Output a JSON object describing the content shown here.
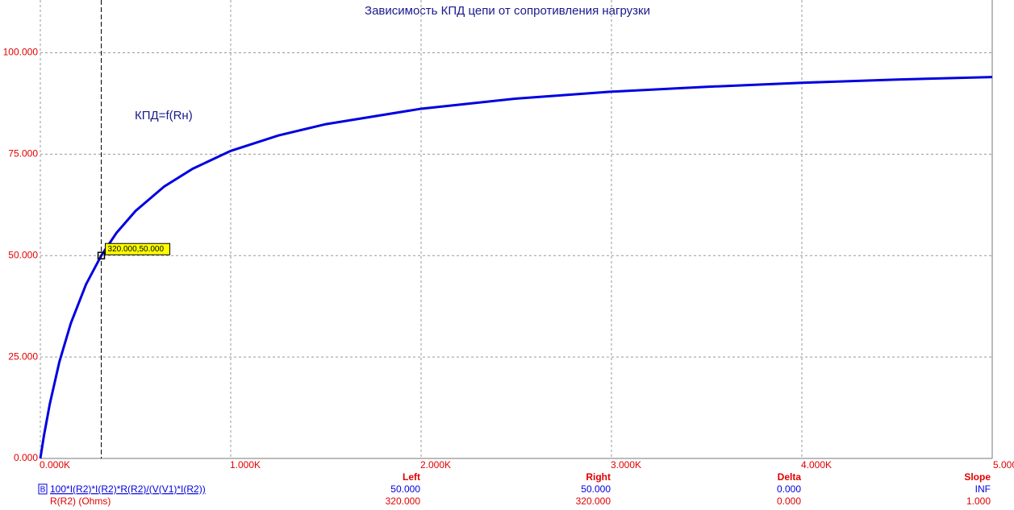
{
  "chart_data": {
    "type": "line",
    "title": "Зависимость КПД цепи от сопротивления нагрузки",
    "annotation": "КПД=f(Rн)",
    "x": [
      0,
      20,
      50,
      100,
      160,
      240,
      320,
      400,
      500,
      650,
      800,
      1000,
      1250,
      1500,
      2000,
      2500,
      3000,
      3500,
      4000,
      4500,
      5000
    ],
    "series": [
      {
        "name": "100*I(R2)*I(R2)*R(R2)/(V(V1)*I(R2))",
        "color": "#0000e0",
        "values": [
          0,
          5.9,
          13.5,
          23.8,
          33.3,
          42.9,
          50,
          55.6,
          61.0,
          67.0,
          71.4,
          75.8,
          79.6,
          82.4,
          86.2,
          88.7,
          90.4,
          91.6,
          92.6,
          93.4,
          94.0
        ]
      }
    ],
    "xlim": [
      0,
      5000
    ],
    "ylim": [
      0,
      113
    ],
    "xticks": [
      {
        "value": 0,
        "label": "0.000K"
      },
      {
        "value": 1000,
        "label": "1.000K"
      },
      {
        "value": 2000,
        "label": "2.000K"
      },
      {
        "value": 3000,
        "label": "3.000K"
      },
      {
        "value": 4000,
        "label": "4.000K"
      },
      {
        "value": 5000,
        "label": "5.000K"
      }
    ],
    "yticks": [
      {
        "value": 0,
        "label": "0.000"
      },
      {
        "value": 25,
        "label": "25.000"
      },
      {
        "value": 50,
        "label": "50.000"
      },
      {
        "value": 75,
        "label": "75.000"
      },
      {
        "value": 100,
        "label": "100.000"
      }
    ],
    "grid": true,
    "cursor": {
      "x": 320,
      "y": 50,
      "label": "320.000,50.000"
    }
  },
  "cursor_table": {
    "marker": "B",
    "headers": [
      "Left",
      "Right",
      "Delta",
      "Slope"
    ],
    "rows": [
      {
        "name": "100*I(R2)*I(R2)*R(R2)/(V(V1)*I(R2))",
        "cells": [
          "50.000",
          "50.000",
          "0.000",
          "INF"
        ]
      },
      {
        "name": "R(R2) (Ohms)",
        "cells": [
          "320.000",
          "320.000",
          "0.000",
          "1.000"
        ]
      }
    ]
  }
}
